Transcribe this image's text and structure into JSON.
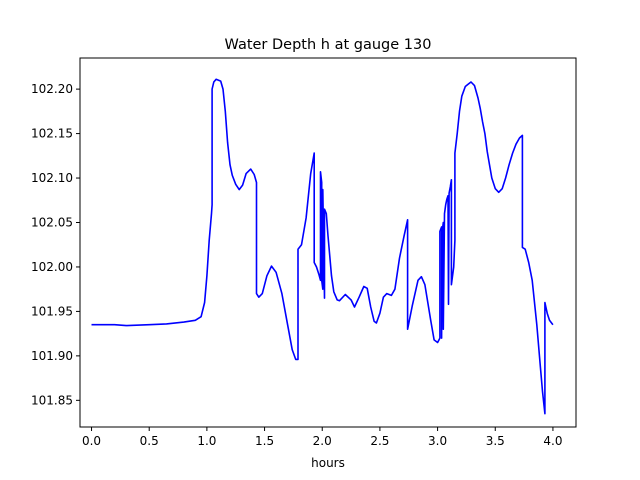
{
  "chart_data": {
    "type": "line",
    "title": "Water Depth h at gauge 130",
    "xlabel": "hours",
    "ylabel": "",
    "xlim": [
      -0.1,
      4.2
    ],
    "ylim": [
      101.82,
      102.235
    ],
    "xticks": [
      0.0,
      0.5,
      1.0,
      1.5,
      2.0,
      2.5,
      3.0,
      3.5,
      4.0
    ],
    "xtick_labels": [
      "0.0",
      "0.5",
      "1.0",
      "1.5",
      "2.0",
      "2.5",
      "3.0",
      "3.5",
      "4.0"
    ],
    "yticks": [
      101.85,
      101.9,
      101.95,
      102.0,
      102.05,
      102.1,
      102.15,
      102.2
    ],
    "ytick_labels": [
      "101.85",
      "101.90",
      "101.95",
      "102.00",
      "102.05",
      "102.10",
      "102.15",
      "102.20"
    ],
    "grid": false,
    "legend": "none",
    "series": [
      {
        "color": "#0000ff",
        "points": [
          [
            0.0,
            101.935
          ],
          [
            0.2,
            101.935
          ],
          [
            0.3,
            101.934
          ],
          [
            0.5,
            101.935
          ],
          [
            0.65,
            101.936
          ],
          [
            0.8,
            101.938
          ],
          [
            0.9,
            101.94
          ],
          [
            0.95,
            101.944
          ],
          [
            0.98,
            101.96
          ],
          [
            1.0,
            101.99
          ],
          [
            1.02,
            102.03
          ],
          [
            1.04,
            102.06
          ],
          [
            1.045,
            102.07
          ],
          [
            1.045,
            102.2
          ],
          [
            1.06,
            102.208
          ],
          [
            1.08,
            102.211
          ],
          [
            1.12,
            102.209
          ],
          [
            1.14,
            102.2
          ],
          [
            1.16,
            102.175
          ],
          [
            1.18,
            102.14
          ],
          [
            1.2,
            102.115
          ],
          [
            1.22,
            102.103
          ],
          [
            1.25,
            102.093
          ],
          [
            1.28,
            102.087
          ],
          [
            1.31,
            102.092
          ],
          [
            1.34,
            102.105
          ],
          [
            1.38,
            102.11
          ],
          [
            1.41,
            102.104
          ],
          [
            1.43,
            102.095
          ],
          [
            1.43,
            101.97
          ],
          [
            1.45,
            101.966
          ],
          [
            1.48,
            101.97
          ],
          [
            1.52,
            101.99
          ],
          [
            1.56,
            102.001
          ],
          [
            1.6,
            101.994
          ],
          [
            1.65,
            101.97
          ],
          [
            1.7,
            101.935
          ],
          [
            1.74,
            101.907
          ],
          [
            1.77,
            101.896
          ],
          [
            1.79,
            101.896
          ],
          [
            1.79,
            102.02
          ],
          [
            1.82,
            102.025
          ],
          [
            1.86,
            102.055
          ],
          [
            1.9,
            102.105
          ],
          [
            1.93,
            102.128
          ],
          [
            1.93,
            102.005
          ],
          [
            1.95,
            102.0
          ],
          [
            1.97,
            101.992
          ],
          [
            1.985,
            101.985
          ],
          [
            1.985,
            102.107
          ],
          [
            1.995,
            102.095
          ],
          [
            1.995,
            101.985
          ],
          [
            2.005,
            101.975
          ],
          [
            2.005,
            102.087
          ],
          [
            2.02,
            101.965
          ],
          [
            2.02,
            102.065
          ],
          [
            2.035,
            102.06
          ],
          [
            2.05,
            102.035
          ],
          [
            2.08,
            101.99
          ],
          [
            2.1,
            101.972
          ],
          [
            2.13,
            101.963
          ],
          [
            2.15,
            101.962
          ],
          [
            2.2,
            101.969
          ],
          [
            2.25,
            101.963
          ],
          [
            2.28,
            101.955
          ],
          [
            2.32,
            101.966
          ],
          [
            2.36,
            101.978
          ],
          [
            2.39,
            101.976
          ],
          [
            2.42,
            101.955
          ],
          [
            2.45,
            101.939
          ],
          [
            2.47,
            101.937
          ],
          [
            2.5,
            101.948
          ],
          [
            2.53,
            101.966
          ],
          [
            2.56,
            101.97
          ],
          [
            2.6,
            101.968
          ],
          [
            2.63,
            101.975
          ],
          [
            2.67,
            102.01
          ],
          [
            2.71,
            102.035
          ],
          [
            2.74,
            102.053
          ],
          [
            2.74,
            101.93
          ],
          [
            2.78,
            101.956
          ],
          [
            2.83,
            101.985
          ],
          [
            2.86,
            101.989
          ],
          [
            2.89,
            101.98
          ],
          [
            2.94,
            101.94
          ],
          [
            2.97,
            101.918
          ],
          [
            3.0,
            101.915
          ],
          [
            3.02,
            101.92
          ],
          [
            3.02,
            102.04
          ],
          [
            3.035,
            102.045
          ],
          [
            3.035,
            101.92
          ],
          [
            3.04,
            102.04
          ],
          [
            3.05,
            102.05
          ],
          [
            3.05,
            101.93
          ],
          [
            3.06,
            102.06
          ],
          [
            3.07,
            102.07
          ],
          [
            3.08,
            102.076
          ],
          [
            3.09,
            102.08
          ],
          [
            3.095,
            101.958
          ],
          [
            3.1,
            102.083
          ],
          [
            3.11,
            102.09
          ],
          [
            3.12,
            102.098
          ],
          [
            3.12,
            101.98
          ],
          [
            3.14,
            102.0
          ],
          [
            3.15,
            102.03
          ],
          [
            3.15,
            102.128
          ],
          [
            3.17,
            102.15
          ],
          [
            3.19,
            102.175
          ],
          [
            3.21,
            102.192
          ],
          [
            3.24,
            102.203
          ],
          [
            3.27,
            102.206
          ],
          [
            3.29,
            102.208
          ],
          [
            3.32,
            102.204
          ],
          [
            3.35,
            102.19
          ],
          [
            3.37,
            102.178
          ],
          [
            3.39,
            102.163
          ],
          [
            3.41,
            102.15
          ],
          [
            3.43,
            102.13
          ],
          [
            3.45,
            102.115
          ],
          [
            3.47,
            102.1
          ],
          [
            3.5,
            102.088
          ],
          [
            3.53,
            102.084
          ],
          [
            3.56,
            102.088
          ],
          [
            3.59,
            102.1
          ],
          [
            3.62,
            102.115
          ],
          [
            3.65,
            102.128
          ],
          [
            3.68,
            102.138
          ],
          [
            3.71,
            102.145
          ],
          [
            3.735,
            102.148
          ],
          [
            3.735,
            102.022
          ],
          [
            3.76,
            102.02
          ],
          [
            3.79,
            102.005
          ],
          [
            3.82,
            101.985
          ],
          [
            3.86,
            101.935
          ],
          [
            3.89,
            101.89
          ],
          [
            3.91,
            101.86
          ],
          [
            3.93,
            101.835
          ],
          [
            3.93,
            101.96
          ],
          [
            3.95,
            101.948
          ],
          [
            3.97,
            101.94
          ],
          [
            4.0,
            101.935
          ]
        ]
      }
    ]
  }
}
